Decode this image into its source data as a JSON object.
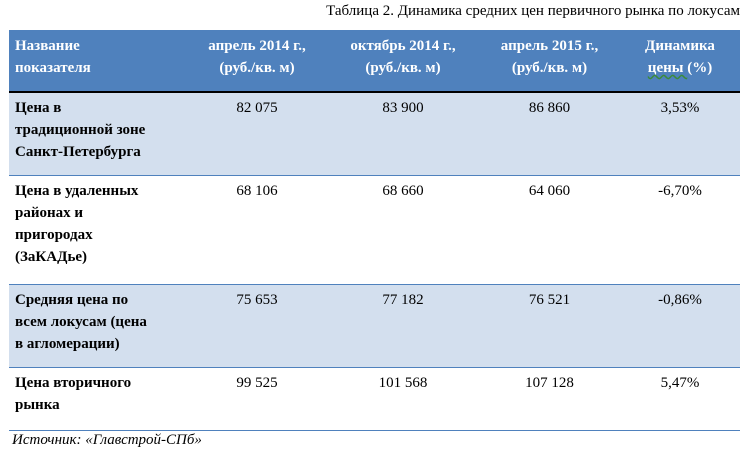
{
  "caption": "Таблица 2. Динамика средних цен первичного рынка по локусам",
  "table": {
    "headers": {
      "name_line1": "Название",
      "name_line2": "показателя",
      "col_a_line1": "апрель 2014 г.,",
      "col_a_line2": "(руб./кв. м)",
      "col_b_line1": "октябрь 2014 г.,",
      "col_b_line2": "(руб./кв. м)",
      "col_c_line1": "апрель 2015 г.,",
      "col_c_line2": "(руб./кв. м)",
      "col_d_line1": "Динамика",
      "col_d_line2a": "цены ",
      "col_d_line2b": "(%)"
    },
    "rows": [
      {
        "label_lines": [
          "Цена в",
          "традиционной зоне",
          "Санкт-Петербурга"
        ],
        "apr2014": "82 075",
        "oct2014": "83 900",
        "apr2015": "86 860",
        "change": "3,53%"
      },
      {
        "label_lines": [
          "Цена в удаленных",
          "районах и",
          "пригородах",
          "(ЗаКАДье)"
        ],
        "apr2014": "68 106",
        "oct2014": "68 660",
        "apr2015": "64 060",
        "change": "-6,70%"
      },
      {
        "label_lines": [
          "Средняя цена по",
          "всем локусам (цена",
          "в агломерации)"
        ],
        "apr2014": "75 653",
        "oct2014": "77 182",
        "apr2015": "76 521",
        "change": "-0,86%"
      },
      {
        "label_lines": [
          "Цена вторичного",
          "рынка"
        ],
        "apr2014": "99 525",
        "oct2014": "101 568",
        "apr2015": "107 128",
        "change": "5,47%"
      }
    ]
  },
  "source": "Источник: «Главстрой-СПб»",
  "colors": {
    "header_bg": "#4f81bd",
    "shaded_row_bg": "#d3dfee",
    "header_text": "#ffffff"
  }
}
